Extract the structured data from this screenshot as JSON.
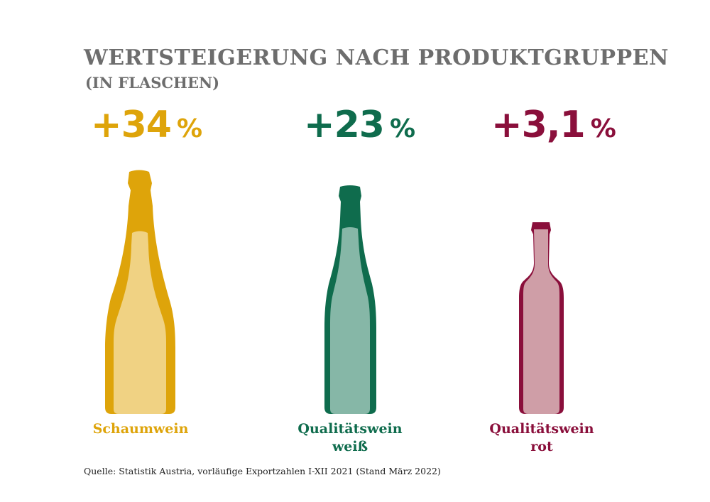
{
  "header": {
    "title": "WERTSTEIGERUNG NACH PRODUKTGRUPPEN",
    "subtitle": "(IN FLASCHEN)"
  },
  "groups": [
    {
      "value": "+34",
      "unit": "%",
      "line1": "Schaumwein",
      "line2": "",
      "color": "#dea40a",
      "light": "#f0d283"
    },
    {
      "value": "+23",
      "unit": "%",
      "line1": "Qualitätswein",
      "line2": "weiß",
      "color": "#0f6c4d",
      "light": "#86b7a7"
    },
    {
      "value": "+3,1",
      "unit": "%",
      "line1": "Qualitätswein",
      "line2": "rot",
      "color": "#8a0f3b",
      "light": "#cf9ea7"
    }
  ],
  "chart_data": {
    "type": "bar",
    "categories": [
      "Schaumwein",
      "Qualitätswein weiß",
      "Qualitätswein rot"
    ],
    "values": [
      34,
      23,
      3.1
    ],
    "title": "WERTSTEIGERUNG NACH PRODUKTGRUPPEN",
    "subtitle": "(IN FLASCHEN)",
    "unit": "%"
  },
  "footer": {
    "source": "Quelle: Statistik Austria, vorläufige Exportzahlen I-XII 2021 (Stand März 2022)"
  }
}
